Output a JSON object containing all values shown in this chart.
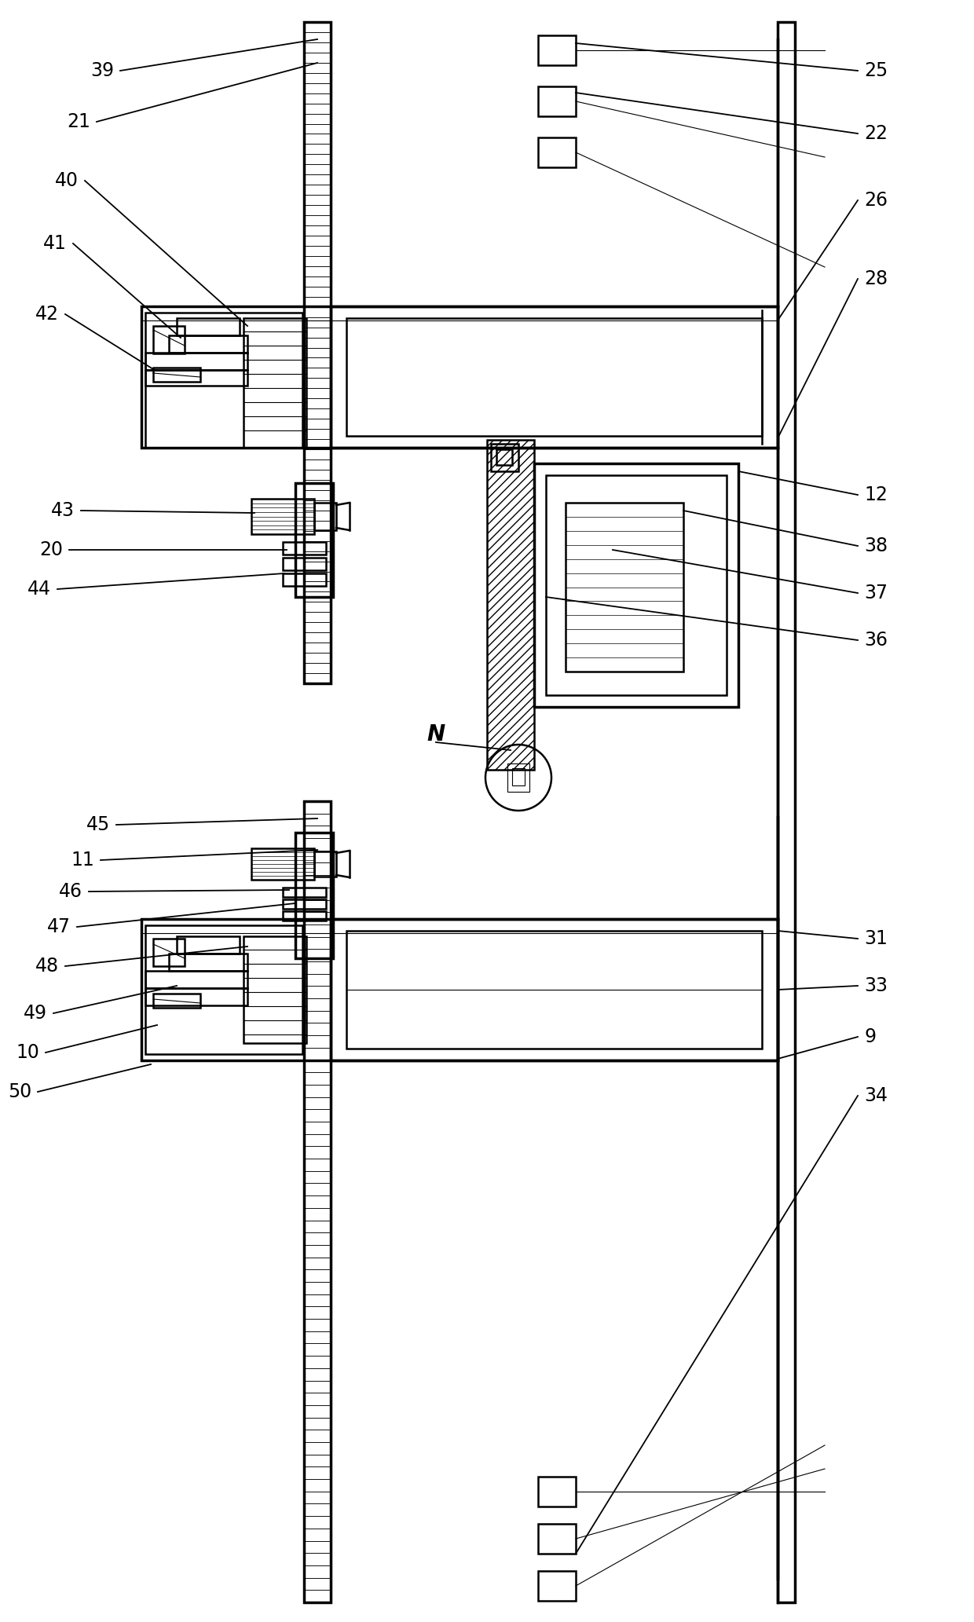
{
  "bg_color": "#ffffff",
  "fig_width": 12.4,
  "fig_height": 20.65,
  "dpi": 100,
  "label_fontsize": 17
}
